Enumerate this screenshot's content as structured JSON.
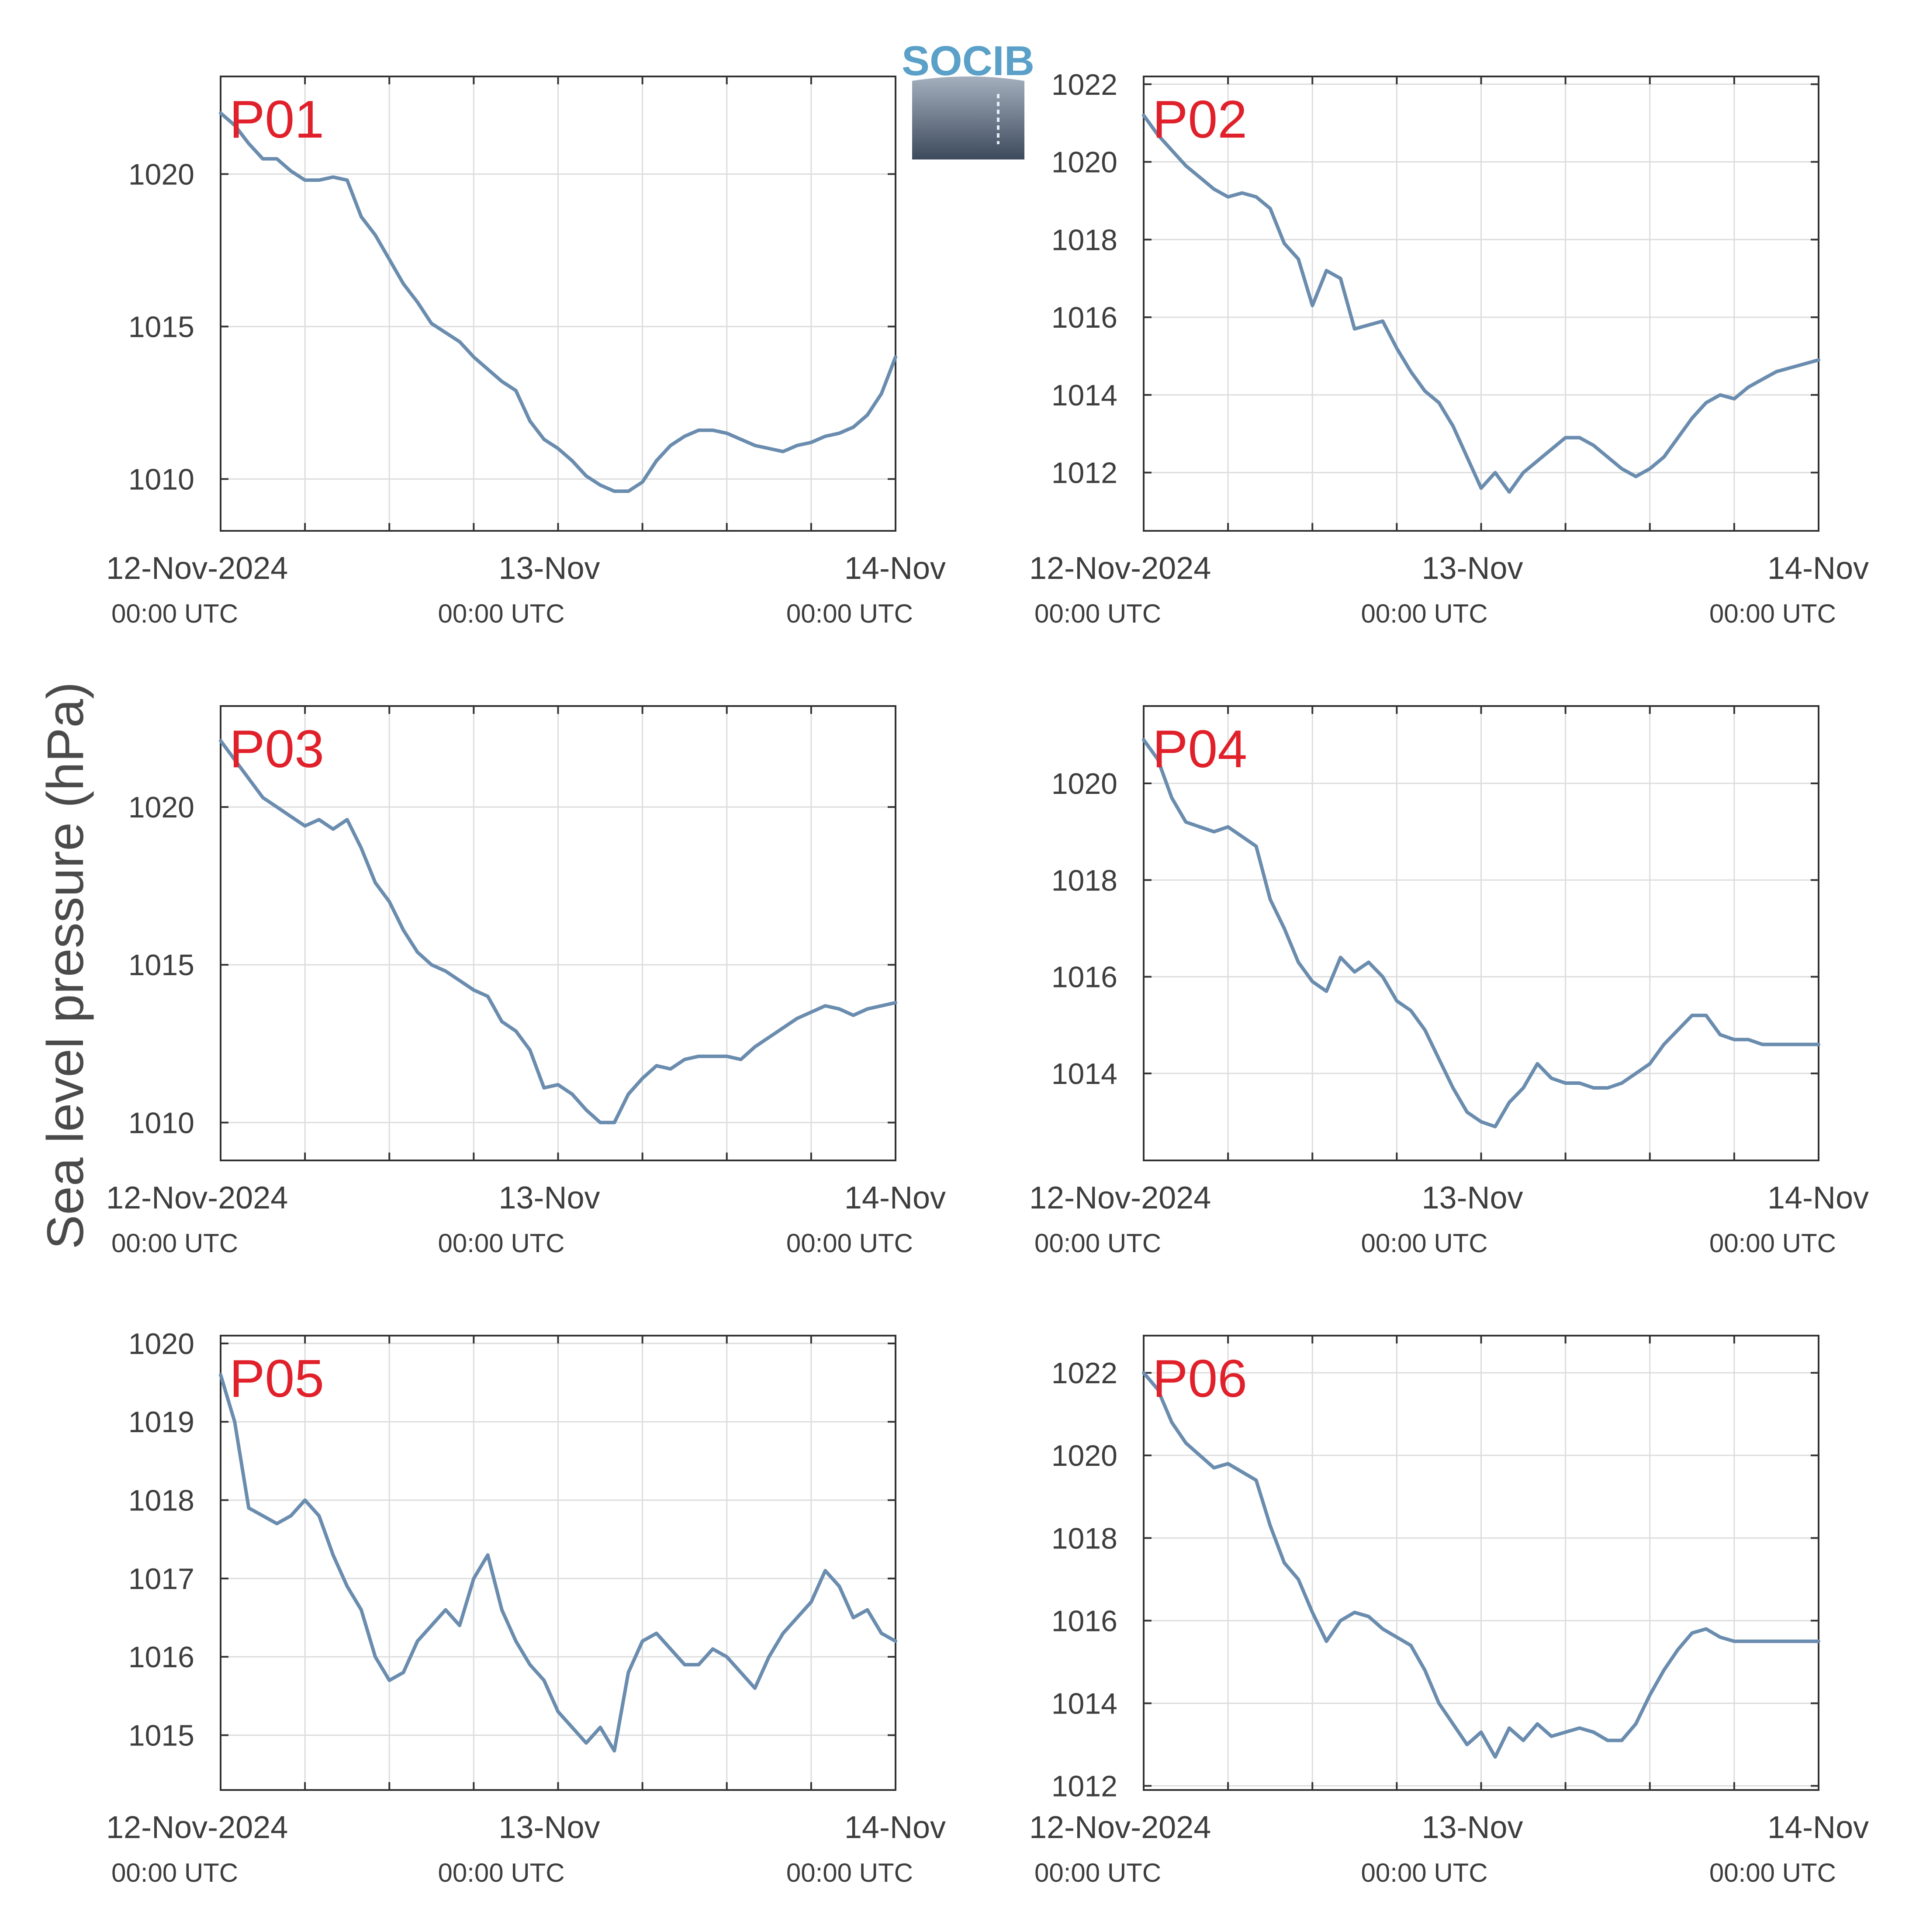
{
  "figure": {
    "ylabel": "Sea level pressure (hPa)",
    "logo_text": "SOCIB",
    "colors": {
      "line": "#6a8cae",
      "label": "#e0202a",
      "grid": "#dddddd",
      "axis": "#333333",
      "text": "#3d3d3d",
      "logo_text": "#5aa0c8",
      "logo_top": "#a4afbd",
      "logo_bottom": "#3c4a5c"
    },
    "x_axis": {
      "range_hours": [
        0,
        48
      ],
      "ticks": [
        {
          "hour": 0,
          "main": "12-Nov-2024",
          "sub": "00:00 UTC"
        },
        {
          "hour": 24,
          "main": "13-Nov",
          "sub": "00:00 UTC"
        },
        {
          "hour": 48,
          "main": "14-Nov",
          "sub": "00:00 UTC"
        }
      ],
      "minor_grid_every_hours": 6
    }
  },
  "chart_data": [
    {
      "type": "line",
      "label": "P01",
      "ylim": [
        1008.3,
        1023.2
      ],
      "yticks": [
        1010,
        1015,
        1020
      ],
      "x": [
        0,
        1,
        2,
        3,
        4,
        5,
        6,
        7,
        8,
        9,
        10,
        11,
        12,
        13,
        14,
        15,
        16,
        17,
        18,
        19,
        20,
        21,
        22,
        23,
        24,
        25,
        26,
        27,
        28,
        29,
        30,
        31,
        32,
        33,
        34,
        35,
        36,
        37,
        38,
        39,
        40,
        41,
        42,
        43,
        44,
        45,
        46,
        47,
        48
      ],
      "values": [
        1022.0,
        1021.6,
        1021.0,
        1020.5,
        1020.5,
        1020.1,
        1019.8,
        1019.8,
        1019.9,
        1019.8,
        1018.6,
        1018.0,
        1017.2,
        1016.4,
        1015.8,
        1015.1,
        1014.8,
        1014.5,
        1014.0,
        1013.6,
        1013.2,
        1012.9,
        1011.9,
        1011.3,
        1011.0,
        1010.6,
        1010.1,
        1009.8,
        1009.6,
        1009.6,
        1009.9,
        1010.6,
        1011.1,
        1011.4,
        1011.6,
        1011.6,
        1011.5,
        1011.3,
        1011.1,
        1011.0,
        1010.9,
        1011.1,
        1011.2,
        1011.4,
        1011.5,
        1011.7,
        1012.1,
        1012.8,
        1014.0
      ]
    },
    {
      "type": "line",
      "label": "P02",
      "ylim": [
        1010.5,
        1022.2
      ],
      "yticks": [
        1012,
        1014,
        1016,
        1018,
        1020,
        1022
      ],
      "x": [
        0,
        1,
        2,
        3,
        4,
        5,
        6,
        7,
        8,
        9,
        10,
        11,
        12,
        13,
        14,
        15,
        16,
        17,
        18,
        19,
        20,
        21,
        22,
        23,
        24,
        25,
        26,
        27,
        28,
        29,
        30,
        31,
        32,
        33,
        34,
        35,
        36,
        37,
        38,
        39,
        40,
        41,
        42,
        43,
        44,
        45,
        46,
        47,
        48
      ],
      "values": [
        1021.2,
        1020.7,
        1020.3,
        1019.9,
        1019.6,
        1019.3,
        1019.1,
        1019.2,
        1019.1,
        1018.8,
        1017.9,
        1017.5,
        1016.3,
        1017.2,
        1017.0,
        1015.7,
        1015.8,
        1015.9,
        1015.2,
        1014.6,
        1014.1,
        1013.8,
        1013.2,
        1012.4,
        1011.6,
        1012.0,
        1011.5,
        1012.0,
        1012.3,
        1012.6,
        1012.9,
        1012.9,
        1012.7,
        1012.4,
        1012.1,
        1011.9,
        1012.1,
        1012.4,
        1012.9,
        1013.4,
        1013.8,
        1014.0,
        1013.9,
        1014.2,
        1014.4,
        1014.6,
        1014.7,
        1014.8,
        1014.9
      ]
    },
    {
      "type": "line",
      "label": "P03",
      "ylim": [
        1008.8,
        1023.2
      ],
      "yticks": [
        1010,
        1015,
        1020
      ],
      "x": [
        0,
        1,
        2,
        3,
        4,
        5,
        6,
        7,
        8,
        9,
        10,
        11,
        12,
        13,
        14,
        15,
        16,
        17,
        18,
        19,
        20,
        21,
        22,
        23,
        24,
        25,
        26,
        27,
        28,
        29,
        30,
        31,
        32,
        33,
        34,
        35,
        36,
        37,
        38,
        39,
        40,
        41,
        42,
        43,
        44,
        45,
        46,
        47,
        48
      ],
      "values": [
        1022.1,
        1021.5,
        1020.9,
        1020.3,
        1020.0,
        1019.7,
        1019.4,
        1019.6,
        1019.3,
        1019.6,
        1018.7,
        1017.6,
        1017.0,
        1016.1,
        1015.4,
        1015.0,
        1014.8,
        1014.5,
        1014.2,
        1014.0,
        1013.2,
        1012.9,
        1012.3,
        1011.1,
        1011.2,
        1010.9,
        1010.4,
        1010.0,
        1010.0,
        1010.9,
        1011.4,
        1011.8,
        1011.7,
        1012.0,
        1012.1,
        1012.1,
        1012.1,
        1012.0,
        1012.4,
        1012.7,
        1013.0,
        1013.3,
        1013.5,
        1013.7,
        1013.6,
        1013.4,
        1013.6,
        1013.7,
        1013.8
      ]
    },
    {
      "type": "line",
      "label": "P04",
      "ylim": [
        1012.2,
        1021.6
      ],
      "yticks": [
        1014,
        1016,
        1018,
        1020
      ],
      "x": [
        0,
        1,
        2,
        3,
        4,
        5,
        6,
        7,
        8,
        9,
        10,
        11,
        12,
        13,
        14,
        15,
        16,
        17,
        18,
        19,
        20,
        21,
        22,
        23,
        24,
        25,
        26,
        27,
        28,
        29,
        30,
        31,
        32,
        33,
        34,
        35,
        36,
        37,
        38,
        39,
        40,
        41,
        42,
        43,
        44,
        45,
        46,
        47,
        48
      ],
      "values": [
        1020.9,
        1020.5,
        1019.7,
        1019.2,
        1019.1,
        1019.0,
        1019.1,
        1018.9,
        1018.7,
        1017.6,
        1017.0,
        1016.3,
        1015.9,
        1015.7,
        1016.4,
        1016.1,
        1016.3,
        1016.0,
        1015.5,
        1015.3,
        1014.9,
        1014.3,
        1013.7,
        1013.2,
        1013.0,
        1012.9,
        1013.4,
        1013.7,
        1014.2,
        1013.9,
        1013.8,
        1013.8,
        1013.7,
        1013.7,
        1013.8,
        1014.0,
        1014.2,
        1014.6,
        1014.9,
        1015.2,
        1015.2,
        1014.8,
        1014.7,
        1014.7,
        1014.6,
        1014.6,
        1014.6,
        1014.6,
        1014.6
      ]
    },
    {
      "type": "line",
      "label": "P05",
      "ylim": [
        1014.3,
        1020.1
      ],
      "yticks": [
        1015,
        1016,
        1017,
        1018,
        1019,
        1020
      ],
      "x": [
        0,
        1,
        2,
        3,
        4,
        5,
        6,
        7,
        8,
        9,
        10,
        11,
        12,
        13,
        14,
        15,
        16,
        17,
        18,
        19,
        20,
        21,
        22,
        23,
        24,
        25,
        26,
        27,
        28,
        29,
        30,
        31,
        32,
        33,
        34,
        35,
        36,
        37,
        38,
        39,
        40,
        41,
        42,
        43,
        44,
        45,
        46,
        47,
        48
      ],
      "values": [
        1019.6,
        1019.0,
        1017.9,
        1017.8,
        1017.7,
        1017.8,
        1018.0,
        1017.8,
        1017.3,
        1016.9,
        1016.6,
        1016.0,
        1015.7,
        1015.8,
        1016.2,
        1016.4,
        1016.6,
        1016.4,
        1017.0,
        1017.3,
        1016.6,
        1016.2,
        1015.9,
        1015.7,
        1015.3,
        1015.1,
        1014.9,
        1015.1,
        1014.8,
        1015.8,
        1016.2,
        1016.3,
        1016.1,
        1015.9,
        1015.9,
        1016.1,
        1016.0,
        1015.8,
        1015.6,
        1016.0,
        1016.3,
        1016.5,
        1016.7,
        1017.1,
        1016.9,
        1016.5,
        1016.6,
        1016.3,
        1016.2
      ]
    },
    {
      "type": "line",
      "label": "P06",
      "ylim": [
        1011.9,
        1022.9
      ],
      "yticks": [
        1012,
        1014,
        1016,
        1018,
        1020,
        1022
      ],
      "x": [
        0,
        1,
        2,
        3,
        4,
        5,
        6,
        7,
        8,
        9,
        10,
        11,
        12,
        13,
        14,
        15,
        16,
        17,
        18,
        19,
        20,
        21,
        22,
        23,
        24,
        25,
        26,
        27,
        28,
        29,
        30,
        31,
        32,
        33,
        34,
        35,
        36,
        37,
        38,
        39,
        40,
        41,
        42,
        43,
        44,
        45,
        46,
        47,
        48
      ],
      "values": [
        1022.0,
        1021.6,
        1020.8,
        1020.3,
        1020.0,
        1019.7,
        1019.8,
        1019.6,
        1019.4,
        1018.3,
        1017.4,
        1017.0,
        1016.2,
        1015.5,
        1016.0,
        1016.2,
        1016.1,
        1015.8,
        1015.6,
        1015.4,
        1014.8,
        1014.0,
        1013.5,
        1013.0,
        1013.3,
        1012.7,
        1013.4,
        1013.1,
        1013.5,
        1013.2,
        1013.3,
        1013.4,
        1013.3,
        1013.1,
        1013.1,
        1013.5,
        1014.2,
        1014.8,
        1015.3,
        1015.7,
        1015.8,
        1015.6,
        1015.5,
        1015.5,
        1015.5,
        1015.5,
        1015.5,
        1015.5,
        1015.5
      ]
    }
  ]
}
